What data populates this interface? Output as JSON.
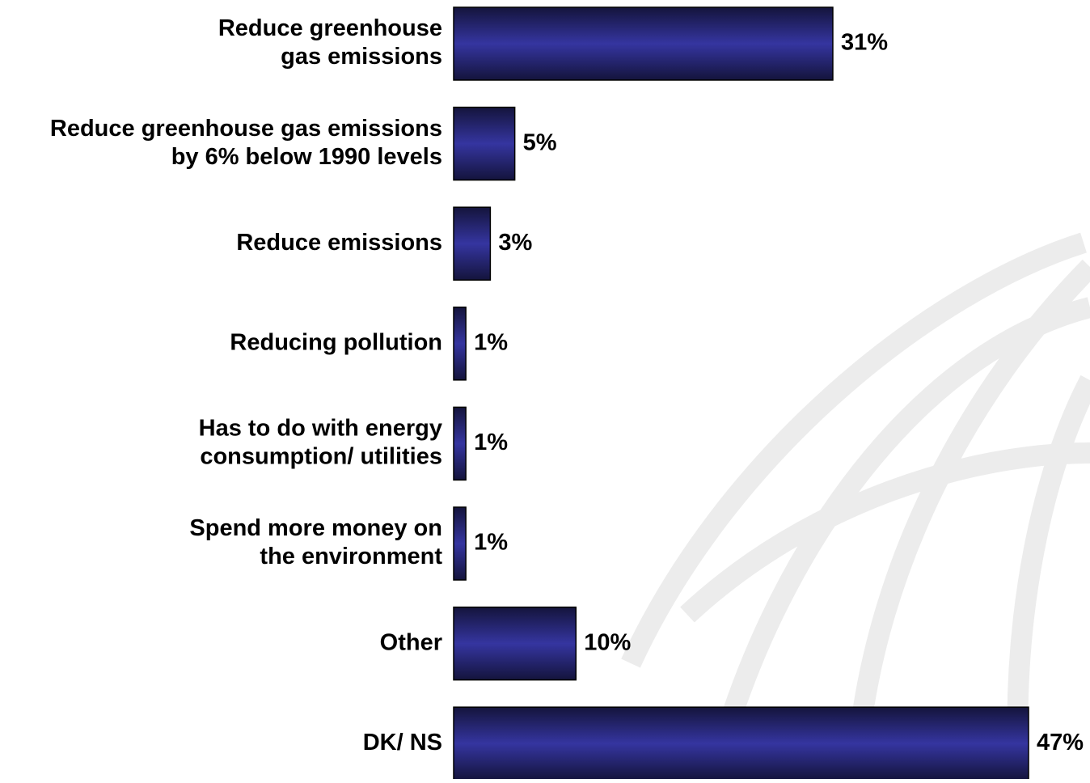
{
  "chart_data": {
    "type": "hbar",
    "categories": [
      [
        "Reduce greenhouse",
        "gas emissions"
      ],
      [
        "Reduce greenhouse gas emissions",
        "by 6% below 1990 levels"
      ],
      [
        "Reduce emissions"
      ],
      [
        "Reducing pollution"
      ],
      [
        "Has to do with energy",
        "consumption/ utilities"
      ],
      [
        "Spend more money on",
        "the environment"
      ],
      [
        "Other"
      ],
      [
        "DK/ NS"
      ]
    ],
    "values": [
      31,
      5,
      3,
      1,
      1,
      1,
      10,
      47
    ],
    "value_labels": [
      "31%",
      "5%",
      "3%",
      "1%",
      "1%",
      "1%",
      "10%",
      "47%"
    ],
    "color": "#2e2e94"
  }
}
